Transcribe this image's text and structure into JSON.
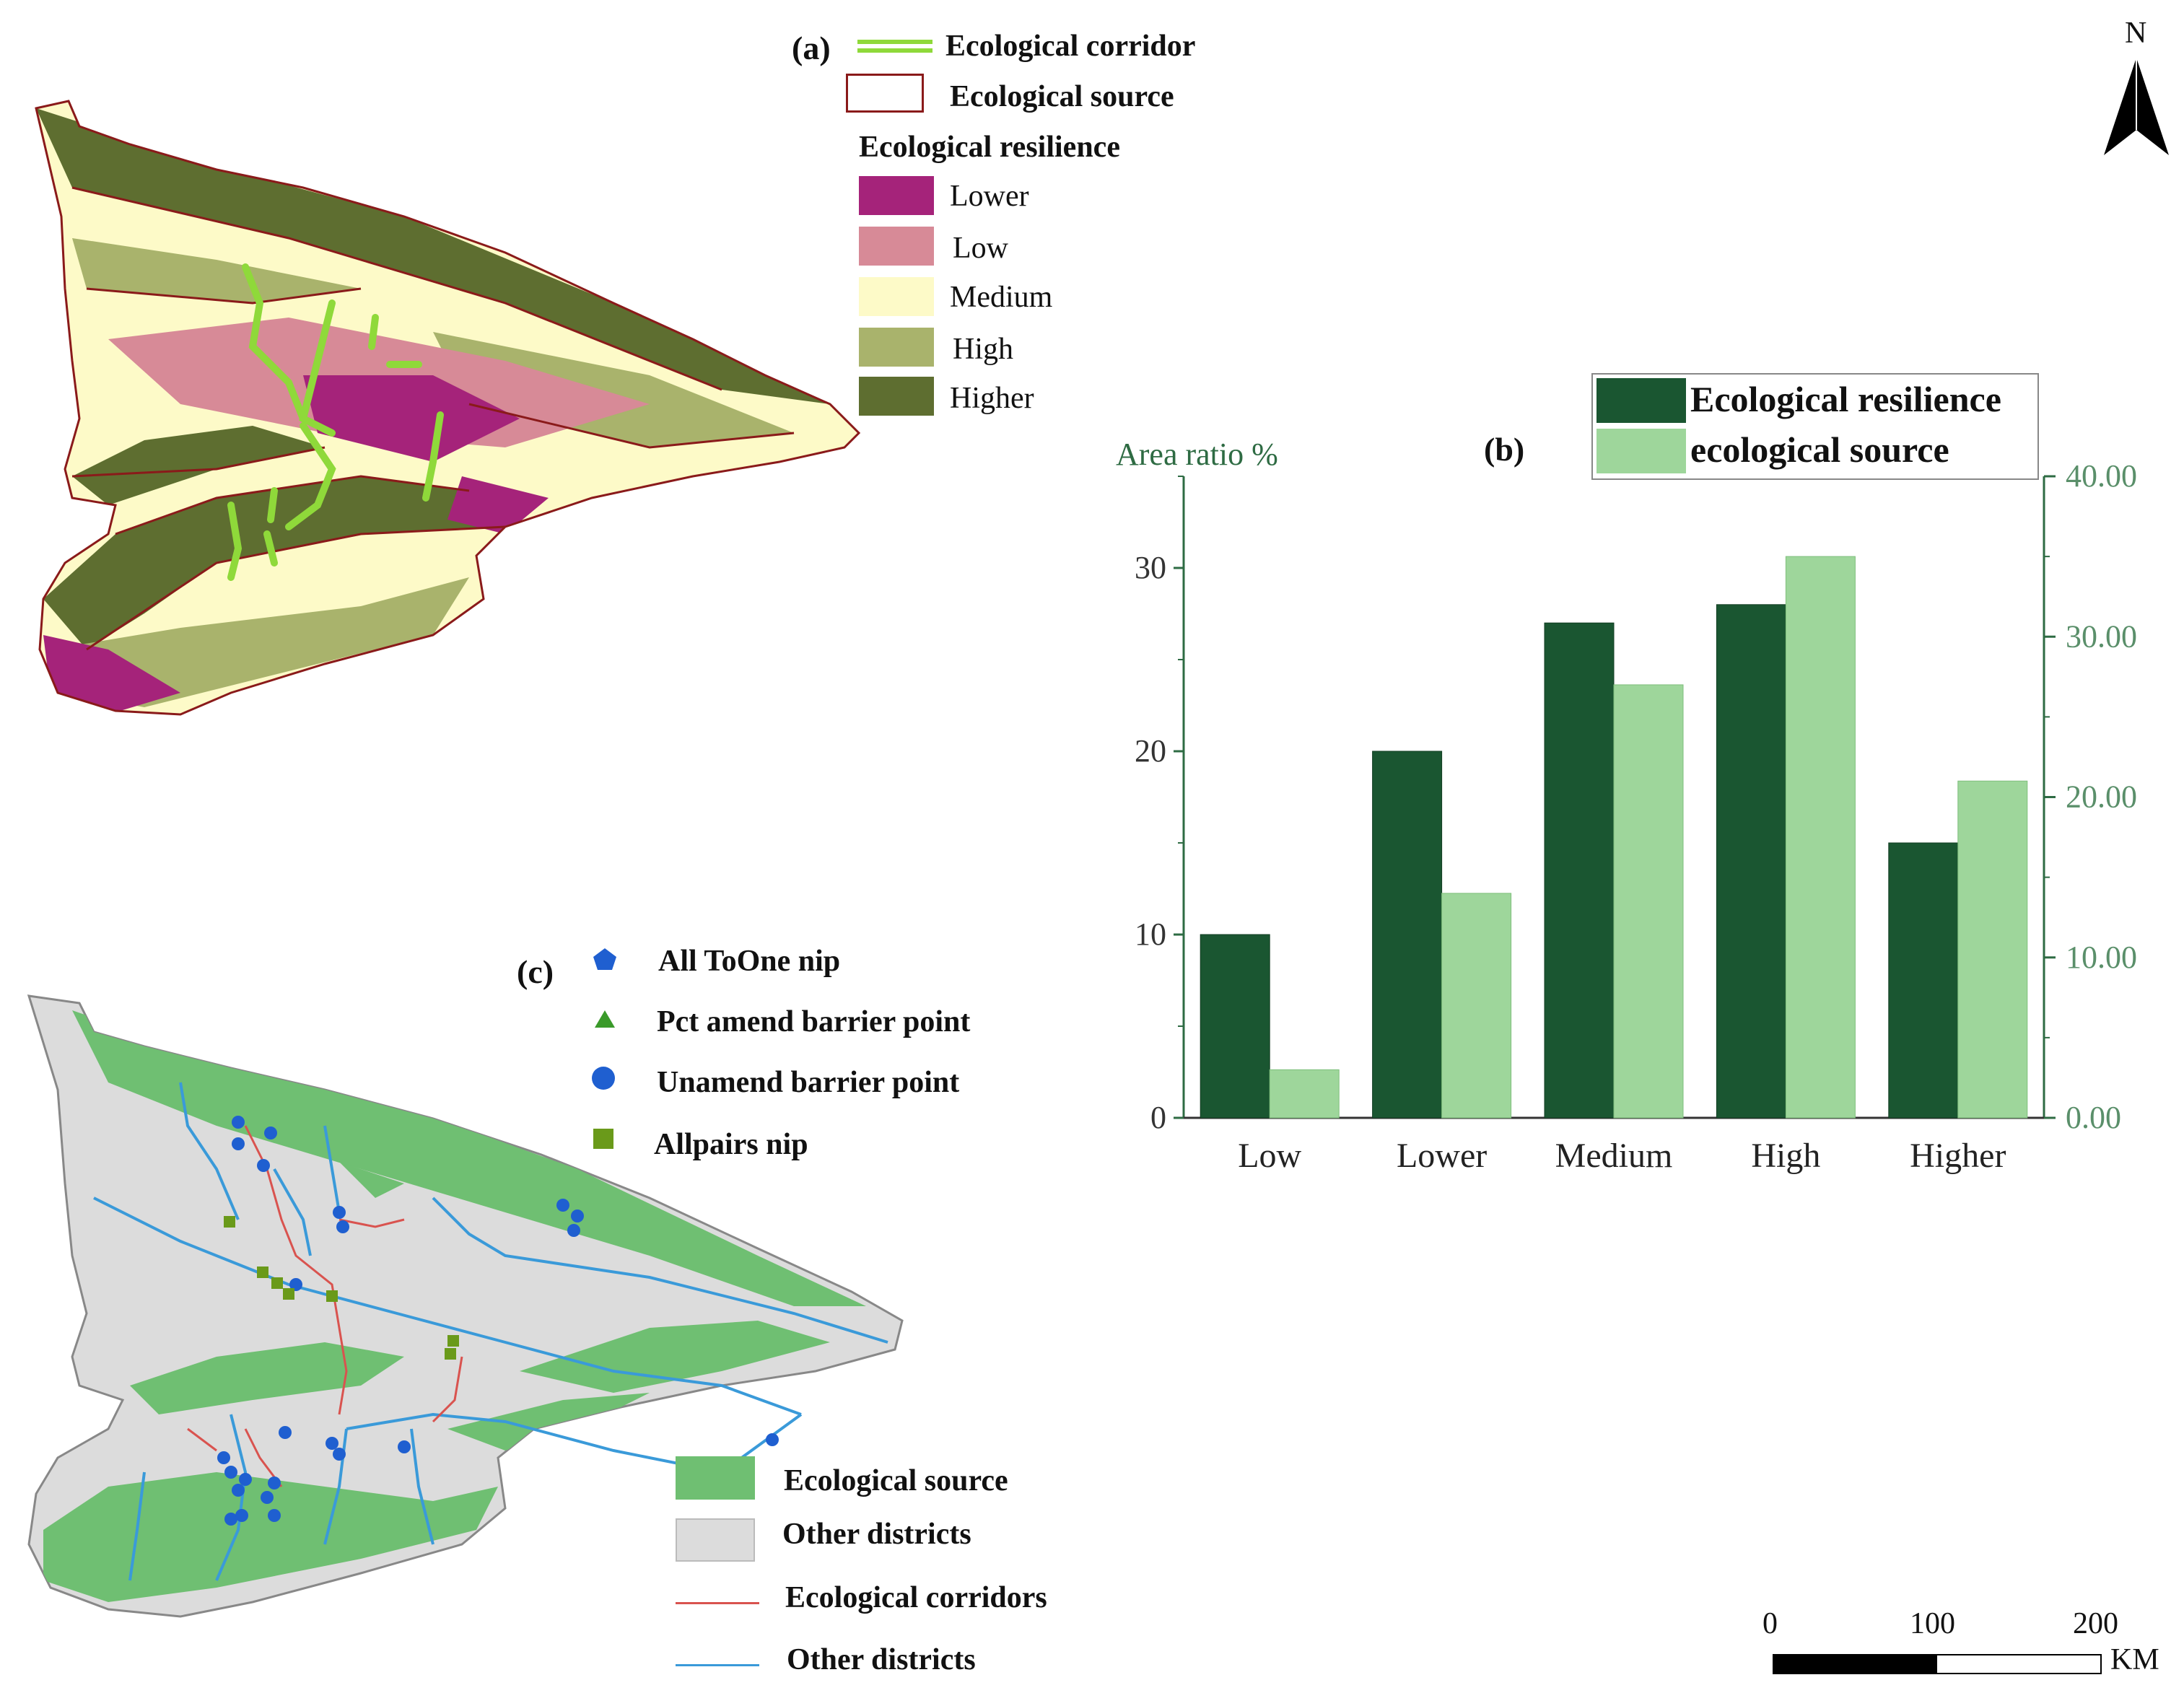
{
  "panel_a": {
    "label": "(a)",
    "legend": {
      "corridor": "Ecological corridor",
      "source": "Ecological source",
      "resilience_title": "Ecological resilience",
      "classes": [
        {
          "label": "Lower",
          "color": "#a5237a"
        },
        {
          "label": "Low",
          "color": "#d78a97"
        },
        {
          "label": "Medium",
          "color": "#fdfac8"
        },
        {
          "label": "High",
          "color": "#a9b36c"
        },
        {
          "label": "Higher",
          "color": "#5e6e30"
        }
      ]
    },
    "colors": {
      "corridor": "#8fd93a",
      "source_outline": "#8a1a1a"
    }
  },
  "north_arrow": {
    "label": "N"
  },
  "panel_b": {
    "label": "(b)",
    "chart_data": {
      "type": "bar",
      "categories": [
        "Low",
        "Lower",
        "Medium",
        "High",
        "Higher"
      ],
      "series": [
        {
          "name": "Ecological resilience",
          "axis": "left",
          "color": "#1a5631",
          "values": [
            10,
            20,
            27,
            28,
            15
          ]
        },
        {
          "name": "ecological source",
          "axis": "right",
          "color": "#9ed69b",
          "values": [
            3.0,
            14.0,
            27.0,
            35.0,
            21.0
          ]
        }
      ],
      "ylabel": "Area ratio %",
      "ylim_left": [
        0,
        35
      ],
      "yticks_left": [
        "0",
        "10",
        "20",
        "30"
      ],
      "ylim_right": [
        0,
        40
      ],
      "yticks_right": [
        "0.00",
        "10.00",
        "20.00",
        "30.00",
        "40.00"
      ],
      "legend_position": "top-right",
      "grid": false
    }
  },
  "panel_c": {
    "label": "(c)",
    "point_legend": [
      {
        "label": "All ToOne nip",
        "shape": "pentagon",
        "color": "#1f5fd0"
      },
      {
        "label": "Pct amend barrier point",
        "shape": "triangle",
        "color": "#3a9a2a"
      },
      {
        "label": "Unamend barrier point",
        "shape": "circle",
        "color": "#1f5fd0"
      },
      {
        "label": "Allpairs nip",
        "shape": "square",
        "color": "#6a9a1a"
      }
    ],
    "area_legend": [
      {
        "label": "Ecological source",
        "kind": "fill",
        "color": "#6fbf72"
      },
      {
        "label": "Other districts",
        "kind": "fill",
        "color": "#dcdcdc"
      },
      {
        "label": "Ecological corridors",
        "kind": "line",
        "color": "#d9534f"
      },
      {
        "label": "Other districts",
        "kind": "line",
        "color": "#3a9ad9"
      }
    ]
  },
  "scale_bar": {
    "labels": [
      "0",
      "100",
      "200"
    ],
    "unit": "KM"
  }
}
